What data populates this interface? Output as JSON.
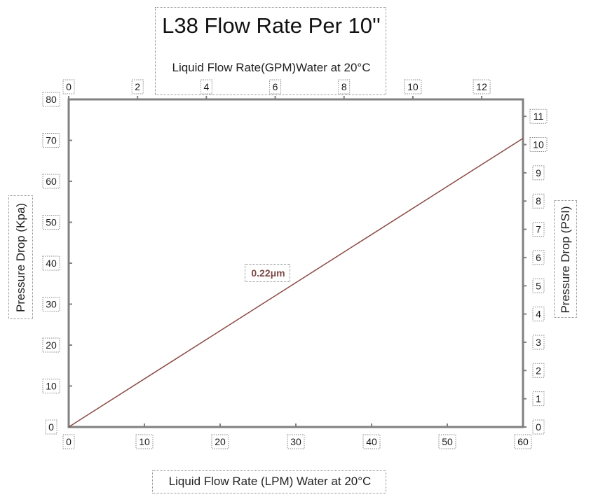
{
  "title": "L38 Flow Rate Per 10''",
  "colors": {
    "axis": "#808080",
    "series": "#8b4a44",
    "text": "#1a1a1a"
  },
  "chart_data": {
    "type": "line",
    "title": "L38 Flow Rate Per 10''",
    "xlabel": "Liquid Flow Rate (LPM) Water at 20°C",
    "ylabel": "Pressure Drop (Kpa)",
    "x2label": "Liquid Flow Rate(GPM)Water at 20°C",
    "y2label": "Pressure Drop (PSI)",
    "xlim": [
      0,
      60
    ],
    "ylim": [
      0,
      80
    ],
    "x2lim": [
      0,
      13.2
    ],
    "y2lim": [
      0,
      11.6
    ],
    "x_ticks": [
      0,
      10,
      20,
      30,
      40,
      50,
      60
    ],
    "y_ticks": [
      0,
      10,
      20,
      30,
      40,
      50,
      60,
      70,
      80
    ],
    "x2_ticks": [
      0,
      2,
      4,
      6,
      8,
      10,
      12
    ],
    "y2_ticks": [
      0,
      1,
      2,
      3,
      4,
      5,
      6,
      7,
      8,
      9,
      10,
      11
    ],
    "grid": false,
    "series": [
      {
        "name": "0.22μm",
        "x": [
          0,
          60
        ],
        "y": [
          0,
          70.5
        ]
      }
    ]
  }
}
